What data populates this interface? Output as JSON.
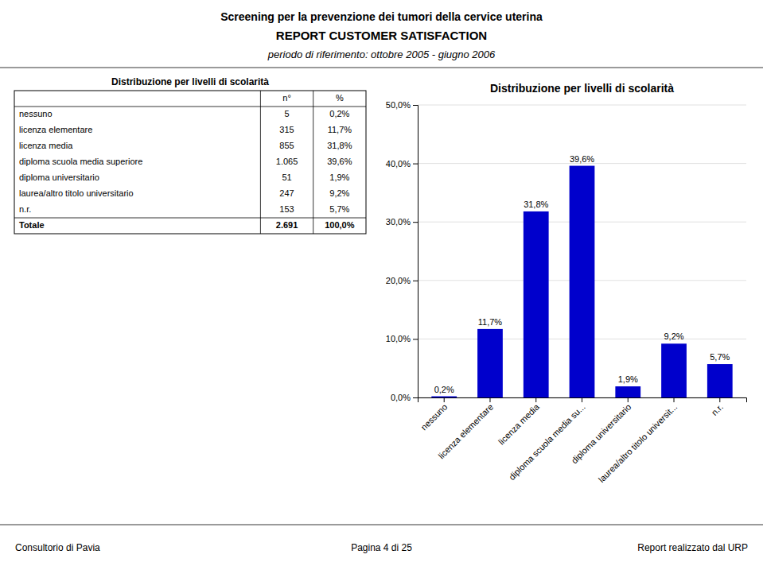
{
  "annotations": [
    "Screening per la prevenzione dei tumori della cervice uterina",
    "REPORT CUSTOMER SATISFACTION",
    "periodo di riferimento: ottobre 2005 - giugno 2006",
    "Consultorio di Pavia",
    "Pagina 4 di 25",
    "Report realizzato dal URP"
  ],
  "chart_data": [
    {
      "type": "table",
      "title": "Distribuzione per livelli di scolarità",
      "columns": [
        "n°",
        "%"
      ],
      "rows": [
        [
          "nessuno",
          "5",
          "0,2%"
        ],
        [
          "licenza elementare",
          "315",
          "11,7%"
        ],
        [
          "licenza media",
          "855",
          "31,8%"
        ],
        [
          "diploma scuola media superiore",
          "1.065",
          "39,6%"
        ],
        [
          "diploma universitario",
          "51",
          "1,9%"
        ],
        [
          "laurea/altro titolo universitario",
          "247",
          "9,2%"
        ],
        [
          "n.r.",
          "153",
          "5,7%"
        ],
        [
          "Totale",
          "2.691",
          "100,0%"
        ]
      ]
    },
    {
      "type": "bar",
      "title": "Distribuzione per livelli di scolarità",
      "categories": [
        "nessuno",
        "licenza elementare",
        "licenza media",
        "diploma scuola media su...",
        "diploma universitario",
        "laurea/altro titolo universit...",
        "n.r."
      ],
      "values": [
        0.2,
        11.7,
        31.8,
        39.6,
        1.9,
        9.2,
        5.7
      ],
      "value_labels": [
        "0,2%",
        "11,7%",
        "31,8%",
        "39,6%",
        "1,9%",
        "9,2%",
        "5,7%"
      ],
      "data_labels": true,
      "color": "#0000CC",
      "ylim": [
        0,
        50
      ],
      "yticks": [
        {
          "value": 0,
          "label": "0,0%"
        },
        {
          "value": 10,
          "label": "10,0%"
        },
        {
          "value": 20,
          "label": "20,0%"
        },
        {
          "value": 30,
          "label": "30,0%"
        },
        {
          "value": 40,
          "label": "40,0%"
        },
        {
          "value": 50,
          "label": "50,0%"
        }
      ],
      "grid": true
    }
  ]
}
